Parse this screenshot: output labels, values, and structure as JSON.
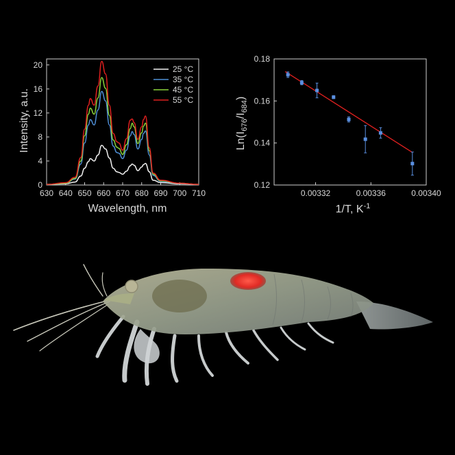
{
  "chart_data": [
    {
      "type": "line",
      "xlabel": "Wavelength, nm",
      "ylabel": "Intensity, a.u.",
      "xlim": [
        630,
        710
      ],
      "ylim": [
        0,
        21
      ],
      "x_ticks": [
        "630",
        "640",
        "650",
        "660",
        "670",
        "680",
        "690",
        "700",
        "710"
      ],
      "y_ticks": [
        "0",
        "4",
        "8",
        "12",
        "16",
        "20"
      ],
      "legend_position": "top-right",
      "x": [
        630,
        640,
        645,
        648,
        650,
        652,
        653,
        655,
        657,
        659,
        661,
        663,
        665,
        667,
        668,
        670,
        672,
        674,
        675,
        676,
        678,
        680,
        681,
        682,
        684,
        686,
        690,
        700,
        710
      ],
      "series": [
        {
          "name": "25 °C",
          "color": "#f2f2f2",
          "values": [
            0.1,
            0.2,
            0.5,
            1.5,
            2.8,
            3.9,
            4.4,
            4.0,
            5.0,
            6.6,
            6.0,
            4.5,
            2.8,
            2.2,
            2.1,
            1.8,
            2.3,
            3.2,
            3.5,
            3.3,
            2.4,
            3.0,
            3.4,
            3.6,
            2.2,
            0.8,
            0.4,
            0.2,
            0.1
          ]
        },
        {
          "name": "35 °C",
          "color": "#4f8fd6",
          "values": [
            0.1,
            0.3,
            1.0,
            3.5,
            7.0,
            10.0,
            10.9,
            10.0,
            12.5,
            15.6,
            14.0,
            10.0,
            6.5,
            5.4,
            5.3,
            4.4,
            5.8,
            8.2,
            8.9,
            8.4,
            6.0,
            7.6,
            8.6,
            9.0,
            5.0,
            1.6,
            0.6,
            0.3,
            0.1
          ]
        },
        {
          "name": "45 °C",
          "color": "#8bd33a",
          "values": [
            0.1,
            0.3,
            1.1,
            4.0,
            8.2,
            11.8,
            12.8,
            11.8,
            14.5,
            17.9,
            16.1,
            11.6,
            7.5,
            6.3,
            6.1,
            5.1,
            6.7,
            9.4,
            10.3,
            9.7,
            6.9,
            8.7,
            9.8,
            10.3,
            5.7,
            1.8,
            0.7,
            0.3,
            0.1
          ]
        },
        {
          "name": "55 °C",
          "color": "#e0201f",
          "values": [
            0.1,
            0.4,
            1.3,
            4.6,
            9.3,
            13.3,
            14.4,
            13.3,
            16.5,
            20.6,
            18.5,
            13.3,
            8.6,
            7.2,
            7.0,
            5.8,
            7.7,
            10.8,
            11.0,
            10.4,
            7.6,
            9.7,
            10.9,
            11.5,
            6.2,
            2.0,
            0.8,
            0.3,
            0.1
          ]
        }
      ]
    },
    {
      "type": "scatter",
      "xlabel": "1/T, K",
      "xlabel_superscript": "-1",
      "ylabel_parts": [
        "Ln(I",
        "676",
        "/I",
        "684",
        ")"
      ],
      "xlim": [
        0.00329,
        0.0034
      ],
      "ylim": [
        0.12,
        0.18
      ],
      "x_ticks": [
        "0.00332",
        "0.00336",
        "0.00340"
      ],
      "x_tick_values": [
        0.00332,
        0.00336,
        0.0034
      ],
      "y_ticks": [
        "0.12",
        "0.14",
        "0.16",
        "0.18"
      ],
      "y_tick_values": [
        0.12,
        0.14,
        0.16,
        0.18
      ],
      "marker_color": "#5a8fe0",
      "fit_color": "#e0201f",
      "fit_line": {
        "x": [
          0.003298,
          0.00339
        ],
        "y": [
          0.174,
          0.1355
        ]
      },
      "points": [
        {
          "x": 0.0033,
          "y": 0.1725,
          "err": 0.0013
        },
        {
          "x": 0.00331,
          "y": 0.1687,
          "err": 0.001
        },
        {
          "x": 0.003321,
          "y": 0.165,
          "err": 0.0035
        },
        {
          "x": 0.003333,
          "y": 0.1618,
          "err": 0.0007
        },
        {
          "x": 0.003344,
          "y": 0.1512,
          "err": 0.0012
        },
        {
          "x": 0.003356,
          "y": 0.1418,
          "err": 0.0065
        },
        {
          "x": 0.003367,
          "y": 0.1448,
          "err": 0.0025
        },
        {
          "x": 0.00339,
          "y": 0.1302,
          "err": 0.0055
        }
      ]
    }
  ],
  "photo": {
    "subject": "shrimp",
    "glow_color": "#ff3a3a"
  }
}
